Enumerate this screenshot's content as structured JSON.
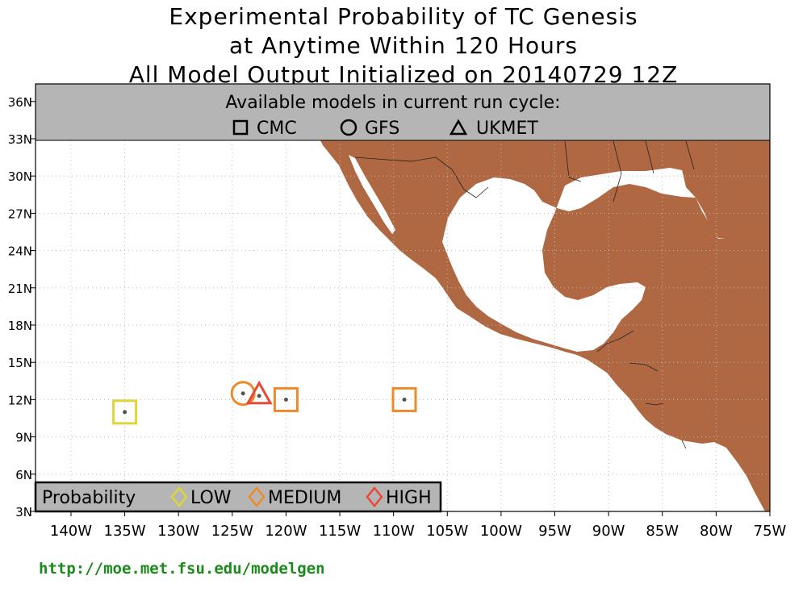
{
  "title": {
    "line1": "Experimental Probability of TC Genesis",
    "line2": "at Anytime Within 120 Hours",
    "line3": "All Model Output Initialized on 20140729 12Z"
  },
  "models_box": {
    "header": "Available models in current run cycle:",
    "models": [
      {
        "symbol": "square-icon",
        "label": "CMC"
      },
      {
        "symbol": "circle-icon",
        "label": "GFS"
      },
      {
        "symbol": "triangle-icon",
        "label": "UKMET"
      }
    ]
  },
  "probability_legend": {
    "title": "Probability",
    "levels": [
      {
        "label": "LOW",
        "color": "#e0d43a"
      },
      {
        "label": "MEDIUM",
        "color": "#ef8a2a"
      },
      {
        "label": "HIGH",
        "color": "#e84a3a"
      }
    ]
  },
  "lat_labels": [
    "3N",
    "6N",
    "9N",
    "12N",
    "15N",
    "18N",
    "21N",
    "24N",
    "27N",
    "30N",
    "33N",
    "36N"
  ],
  "lon_labels": [
    "140W",
    "135W",
    "130W",
    "125W",
    "120W",
    "115W",
    "110W",
    "105W",
    "100W",
    "95W",
    "90W",
    "85W",
    "80W",
    "75W"
  ],
  "markers": [
    {
      "model": "CMC",
      "lon": -135.0,
      "lat": 11.0,
      "level": "LOW"
    },
    {
      "model": "GFS",
      "lon": -124.0,
      "lat": 12.5,
      "level": "MEDIUM"
    },
    {
      "model": "UKMET",
      "lon": -122.5,
      "lat": 12.3,
      "level": "HIGH"
    },
    {
      "model": "CMC",
      "lon": -120.0,
      "lat": 12.0,
      "level": "MEDIUM"
    },
    {
      "model": "CMC",
      "lon": -109.0,
      "lat": 12.0,
      "level": "MEDIUM"
    }
  ],
  "colors": {
    "land": "#b06843",
    "header_box": "#b5b5b5"
  },
  "footer": "http://moe.met.fsu.edu/modelgen"
}
